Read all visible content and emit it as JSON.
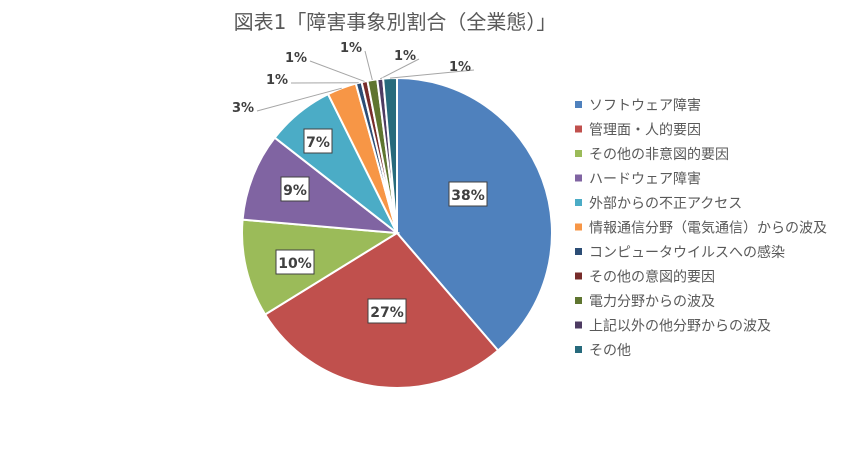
{
  "chart_data": {
    "type": "pie",
    "title": "図表1「障害事象別割合（全業態）」",
    "legend_position": "right",
    "slices": [
      {
        "label": "ソフトウェア障害",
        "value": 38,
        "display": "38%",
        "color": "#4F81BD"
      },
      {
        "label": "管理面・人的要因",
        "value": 27,
        "display": "27%",
        "color": "#C0504D"
      },
      {
        "label": "その他の非意図的要因",
        "value": 10,
        "display": "10%",
        "color": "#9BBB59"
      },
      {
        "label": "ハードウェア障害",
        "value": 9,
        "display": "9%",
        "color": "#8064A2"
      },
      {
        "label": "外部からの不正アクセス",
        "value": 7,
        "display": "7%",
        "color": "#4BACC6"
      },
      {
        "label": "情報通信分野（電気通信）からの波及",
        "value": 3,
        "display": "3%",
        "color": "#F79646"
      },
      {
        "label": "コンピュータウイルスへの感染",
        "value": 0.6,
        "display": "1%",
        "color": "#2C4D75"
      },
      {
        "label": "その他の意図的要因",
        "value": 0.6,
        "display": "1%",
        "color": "#772C2A"
      },
      {
        "label": "電力分野からの波及",
        "value": 1,
        "display": "1%",
        "color": "#5F7530"
      },
      {
        "label": "上記以外の他分野からの波及",
        "value": 0.6,
        "display": "1%",
        "color": "#4D3B62"
      },
      {
        "label": "その他",
        "value": 1.4,
        "display": "1%",
        "color": "#276A7C"
      }
    ]
  }
}
